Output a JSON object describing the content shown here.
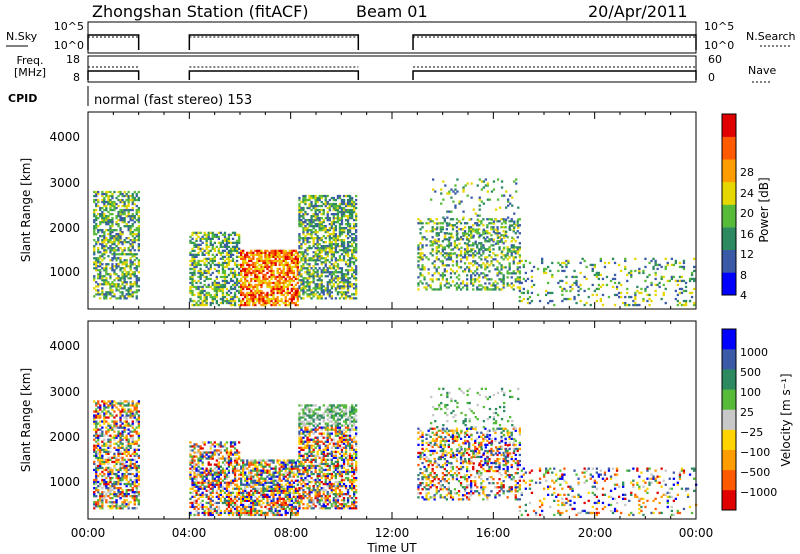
{
  "header": {
    "station": "Zhongshan Station (fitACF)",
    "beam": "Beam 01",
    "date": "20/Apr/2011"
  },
  "status_panels": {
    "nsky_label": "N.Sky",
    "nsearch_label": "N.Search",
    "nsky_ticks": [
      "10^5",
      "10^0"
    ],
    "nsearch_ticks": [
      "10^5",
      "10^0"
    ],
    "freq_label_line1": "Freq.",
    "freq_label_line2": "[MHz]",
    "freq_ticks": [
      "18",
      "8"
    ],
    "nave_label": "Nave",
    "nave_ticks": [
      "60",
      "0"
    ],
    "cpid_label": "CPID",
    "cpid_text": "normal (fast stereo) 153"
  },
  "colors": {
    "power": [
      "#0000ff",
      "#3a5aa8",
      "#2d8a60",
      "#57bb3a",
      "#e6d700",
      "#ff9d00",
      "#ff5a00",
      "#e00000"
    ],
    "velocity": [
      "#e00000",
      "#ff5a00",
      "#ff9d00",
      "#ffd400",
      "#c8c8c8",
      "#57bb3a",
      "#2d8a60",
      "#3a5aa8",
      "#0000ff"
    ]
  },
  "chart_data": [
    {
      "type": "heatmap",
      "title": "Power",
      "ylabel": "Slant Range [km]",
      "yticks": [
        "4000",
        "3000",
        "2000",
        "1000"
      ],
      "ylim": [
        180,
        4600
      ],
      "xlim": [
        "00:00",
        "24:00"
      ],
      "colorbar_label": "Power [dB]",
      "colorbar_ticks": [
        "28",
        "24",
        "20",
        "16",
        "12",
        "8",
        "4"
      ],
      "data_gaps": [
        [
          "02:00",
          "04:00"
        ],
        [
          "10:40",
          "12:50"
        ]
      ]
    },
    {
      "type": "heatmap",
      "title": "Velocity",
      "ylabel": "Slant Range [km]",
      "yticks": [
        "4000",
        "3000",
        "2000",
        "1000"
      ],
      "ylim": [
        180,
        4600
      ],
      "xlabel": "Time UT",
      "xticks": [
        "00:00",
        "04:00",
        "08:00",
        "12:00",
        "16:00",
        "20:00",
        "00:00"
      ],
      "colorbar_label": "Velocity [m s⁻¹]",
      "colorbar_ticks": [
        "1000",
        "500",
        "100",
        "25",
        "−25",
        "−100",
        "−500",
        "−1000"
      ],
      "data_gaps": [
        [
          "02:00",
          "04:00"
        ],
        [
          "10:40",
          "12:50"
        ]
      ]
    }
  ]
}
